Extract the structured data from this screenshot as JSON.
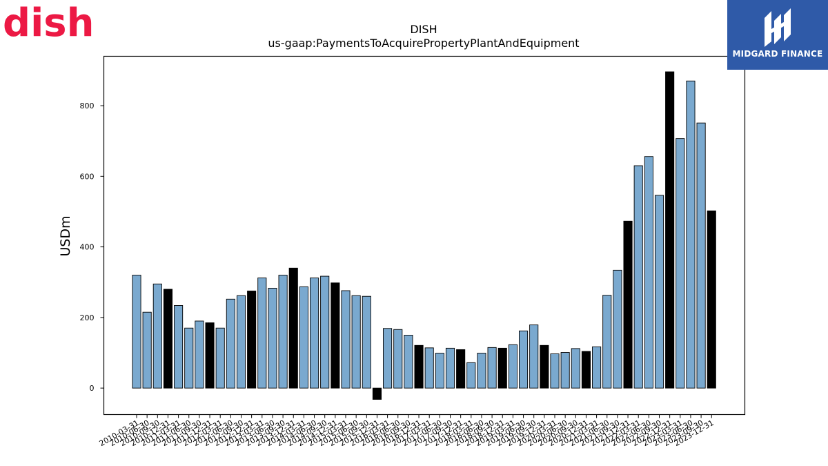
{
  "brand": {
    "logo_text": "dish",
    "badge_text": "MIDGARD FINANCE",
    "logo_color": "#ec1944",
    "badge_color": "#2f5aa8"
  },
  "chart_data": {
    "type": "bar",
    "title": "DISH",
    "subtitle": "us-gaap:PaymentsToAcquirePropertyPlantAndEquipment",
    "xlabel": "",
    "ylabel": "USDm",
    "ylim": [
      -75,
      940
    ],
    "yticks": [
      0,
      200,
      400,
      600,
      800
    ],
    "grid": false,
    "colors": {
      "quarter": "#7aa9cf",
      "year_end": "#000000"
    },
    "categories": [
      "2010-03-31",
      "2010-06-30",
      "2010-09-30",
      "2010-12-31",
      "2011-03-31",
      "2011-06-30",
      "2011-09-30",
      "2011-12-31",
      "2012-03-31",
      "2012-06-30",
      "2012-09-30",
      "2012-12-31",
      "2013-03-31",
      "2013-06-30",
      "2013-09-30",
      "2013-12-31",
      "2014-03-31",
      "2014-06-30",
      "2014-09-30",
      "2014-12-31",
      "2015-03-31",
      "2015-06-30",
      "2015-09-30",
      "2015-12-31",
      "2016-03-31",
      "2016-06-30",
      "2016-09-30",
      "2016-12-31",
      "2017-03-31",
      "2017-06-30",
      "2017-09-30",
      "2017-12-31",
      "2018-03-31",
      "2018-06-30",
      "2018-09-30",
      "2018-12-31",
      "2019-03-31",
      "2019-06-30",
      "2019-09-30",
      "2019-12-31",
      "2020-03-31",
      "2020-06-30",
      "2020-09-30",
      "2020-12-31",
      "2021-03-31",
      "2021-06-30",
      "2021-09-30",
      "2021-12-31",
      "2022-03-31",
      "2022-06-30",
      "2022-09-30",
      "2022-12-31",
      "2023-03-31",
      "2023-06-30",
      "2023-09-30",
      "2023-12-31"
    ],
    "values": [
      320,
      215,
      295,
      280,
      234,
      170,
      190,
      185,
      170,
      252,
      262,
      275,
      312,
      283,
      320,
      340,
      287,
      312,
      317,
      298,
      276,
      262,
      260,
      -32,
      169,
      166,
      150,
      121,
      114,
      99,
      113,
      109,
      72,
      99,
      115,
      113,
      123,
      162,
      179,
      121,
      97,
      101,
      112,
      104,
      117,
      263,
      334,
      473,
      630,
      656,
      546,
      896,
      707,
      870,
      751,
      502
    ],
    "year_end_flags": [
      0,
      0,
      0,
      1,
      0,
      0,
      0,
      1,
      0,
      0,
      0,
      1,
      0,
      0,
      0,
      1,
      0,
      0,
      0,
      1,
      0,
      0,
      0,
      1,
      0,
      0,
      0,
      1,
      0,
      0,
      0,
      1,
      0,
      0,
      0,
      1,
      0,
      0,
      0,
      1,
      0,
      0,
      0,
      1,
      0,
      0,
      0,
      1,
      0,
      0,
      0,
      1,
      0,
      0,
      0,
      1
    ]
  }
}
